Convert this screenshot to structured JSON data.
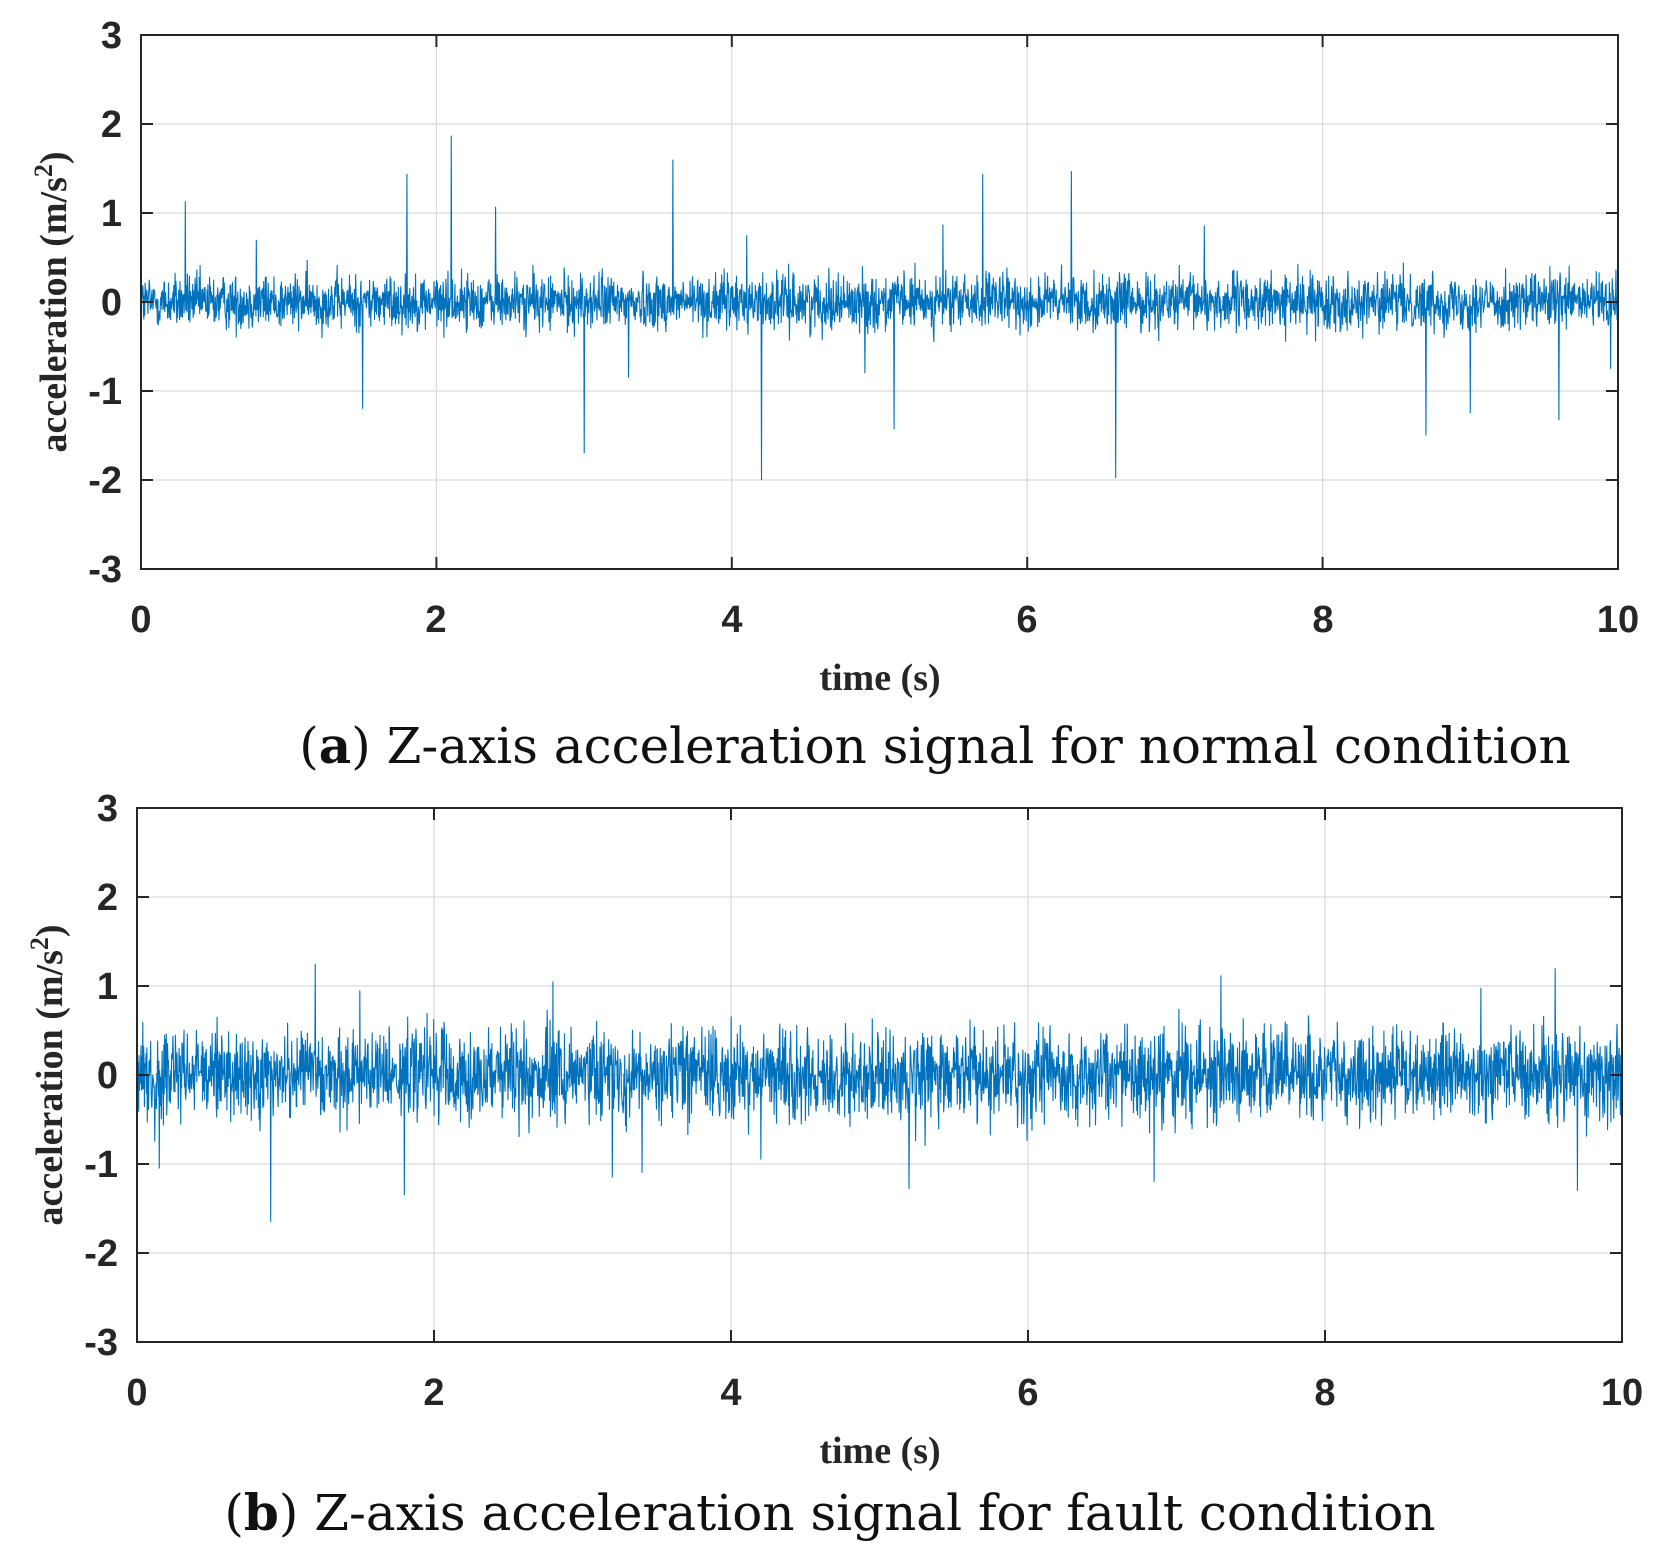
{
  "chart_data": [
    {
      "type": "line",
      "panel": "a",
      "caption_tag": "a",
      "caption_text": "Z-axis acceleration signal for normal condition",
      "xlabel": "time (s)",
      "ylabel": "acceleration (m/s",
      "ylabel_sup": "2",
      "ylabel_close": ")",
      "xlim": [
        0,
        10
      ],
      "ylim": [
        -3,
        3
      ],
      "xticks": [
        "0",
        "2",
        "4",
        "6",
        "8",
        "10"
      ],
      "yticks": [
        "3",
        "2",
        "1",
        "0",
        "-1",
        "-2",
        "-3"
      ],
      "grid": true,
      "series": [
        {
          "name": "Z-axis acceleration",
          "color": "#0072bd",
          "noise_amplitude": 0.33,
          "spikes": [
            {
              "t": 0.3,
              "a": 1.13
            },
            {
              "t": 0.78,
              "a": 0.7
            },
            {
              "t": 1.5,
              "a": -1.2
            },
            {
              "t": 1.8,
              "a": 1.44
            },
            {
              "t": 2.1,
              "a": 1.87
            },
            {
              "t": 2.4,
              "a": 1.07
            },
            {
              "t": 3.0,
              "a": -1.7
            },
            {
              "t": 3.3,
              "a": -0.85
            },
            {
              "t": 3.6,
              "a": 1.6
            },
            {
              "t": 4.1,
              "a": 0.75
            },
            {
              "t": 4.2,
              "a": -2.0
            },
            {
              "t": 4.9,
              "a": -0.8
            },
            {
              "t": 5.1,
              "a": -1.43
            },
            {
              "t": 5.43,
              "a": 0.87
            },
            {
              "t": 5.7,
              "a": 1.44
            },
            {
              "t": 6.3,
              "a": 1.47
            },
            {
              "t": 6.6,
              "a": -1.98
            },
            {
              "t": 7.2,
              "a": 0.86
            },
            {
              "t": 8.7,
              "a": -1.5
            },
            {
              "t": 9.0,
              "a": -1.25
            },
            {
              "t": 9.6,
              "a": -1.33
            },
            {
              "t": 9.95,
              "a": -0.75
            }
          ]
        }
      ]
    },
    {
      "type": "line",
      "panel": "b",
      "caption_tag": "b",
      "caption_text": "Z-axis acceleration signal for fault condition",
      "xlabel": "time (s)",
      "ylabel": "acceleration (m/s",
      "ylabel_sup": "2",
      "ylabel_close": ")",
      "xlim": [
        0,
        10
      ],
      "ylim": [
        -3,
        3
      ],
      "xticks": [
        "0",
        "2",
        "4",
        "6",
        "8",
        "10"
      ],
      "yticks": [
        "3",
        "2",
        "1",
        "0",
        "-1",
        "-2",
        "-3"
      ],
      "grid": true,
      "series": [
        {
          "name": "Z-axis acceleration",
          "color": "#0072bd",
          "noise_amplitude": 0.55,
          "spikes": [
            {
              "t": 0.15,
              "a": -1.05
            },
            {
              "t": 0.9,
              "a": -1.65
            },
            {
              "t": 1.2,
              "a": 1.25
            },
            {
              "t": 1.5,
              "a": 0.95
            },
            {
              "t": 1.8,
              "a": -1.35
            },
            {
              "t": 2.8,
              "a": 1.05
            },
            {
              "t": 3.2,
              "a": -1.15
            },
            {
              "t": 3.4,
              "a": -1.1
            },
            {
              "t": 4.2,
              "a": -0.95
            },
            {
              "t": 5.2,
              "a": -1.28
            },
            {
              "t": 6.85,
              "a": -1.2
            },
            {
              "t": 7.3,
              "a": 1.12
            },
            {
              "t": 9.05,
              "a": 0.98
            },
            {
              "t": 9.55,
              "a": 1.2
            },
            {
              "t": 9.7,
              "a": -1.3
            }
          ]
        }
      ]
    }
  ]
}
